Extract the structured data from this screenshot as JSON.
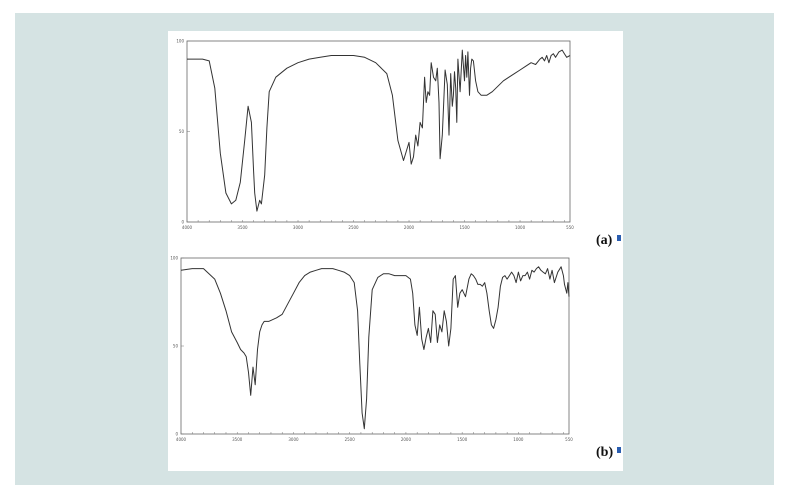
{
  "figure": {
    "label_a": "(a)",
    "label_b": "(b)"
  },
  "colors": {
    "background": "#d5e3e3",
    "panel": "#ffffff",
    "line": "#333333",
    "marker": "#2a5db0"
  },
  "chart_data": [
    {
      "type": "line",
      "label": "(a)",
      "title": "",
      "xlabel": "",
      "ylabel": "",
      "xlim": [
        4000,
        550
      ],
      "ylim": [
        0,
        100
      ],
      "x_ticks": [
        4000,
        3500,
        3000,
        2500,
        2000,
        1500,
        1000,
        550
      ],
      "y_ticks": [
        0,
        50,
        100
      ],
      "grid": false,
      "legend": "none",
      "series": [
        {
          "name": "",
          "x": [
            4000,
            3860,
            3800,
            3750,
            3700,
            3650,
            3600,
            3560,
            3520,
            3480,
            3450,
            3420,
            3400,
            3390,
            3370,
            3345,
            3330,
            3300,
            3280,
            3260,
            3200,
            3100,
            3000,
            2900,
            2800,
            2700,
            2600,
            2500,
            2400,
            2300,
            2200,
            2150,
            2100,
            2050,
            2000,
            1980,
            1960,
            1940,
            1920,
            1900,
            1880,
            1860,
            1845,
            1830,
            1815,
            1800,
            1780,
            1760,
            1745,
            1730,
            1720,
            1700,
            1690,
            1675,
            1655,
            1640,
            1625,
            1610,
            1600,
            1590,
            1580,
            1570,
            1560,
            1540,
            1520,
            1500,
            1490,
            1480,
            1470,
            1455,
            1445,
            1435,
            1420,
            1400,
            1380,
            1350,
            1300,
            1250,
            1200,
            1150,
            1100,
            1050,
            1000,
            950,
            900,
            860,
            820,
            800,
            780,
            760,
            740,
            720,
            700,
            680,
            650,
            620,
            600,
            580,
            550
          ],
          "values": [
            90,
            90,
            89,
            74,
            38,
            16,
            10,
            12,
            22,
            45,
            64,
            55,
            28,
            16,
            6,
            12,
            10,
            26,
            52,
            72,
            80,
            85,
            88,
            90,
            91,
            92,
            92,
            92,
            91,
            88,
            82,
            70,
            45,
            34,
            44,
            32,
            36,
            48,
            42,
            55,
            52,
            80,
            66,
            72,
            70,
            88,
            80,
            78,
            85,
            66,
            35,
            48,
            62,
            84,
            76,
            48,
            82,
            64,
            70,
            83,
            74,
            55,
            90,
            72,
            95,
            78,
            92,
            80,
            94,
            70,
            85,
            90,
            89,
            78,
            72,
            70,
            70,
            72,
            75,
            78,
            80,
            82,
            84,
            86,
            88,
            87,
            90,
            91,
            89,
            92,
            88,
            92,
            93,
            91,
            94,
            95,
            93,
            91,
            92
          ]
        }
      ]
    },
    {
      "type": "line",
      "label": "(b)",
      "title": "",
      "xlabel": "",
      "ylabel": "",
      "xlim": [
        4000,
        550
      ],
      "ylim": [
        0,
        100
      ],
      "x_ticks": [
        4000,
        3500,
        3000,
        2500,
        2000,
        1500,
        1000,
        550
      ],
      "y_ticks": [
        0,
        50,
        100
      ],
      "grid": false,
      "legend": "none",
      "series": [
        {
          "name": "",
          "x": [
            4000,
            3900,
            3800,
            3700,
            3650,
            3600,
            3550,
            3500,
            3470,
            3440,
            3420,
            3400,
            3380,
            3360,
            3340,
            3320,
            3300,
            3280,
            3260,
            3220,
            3150,
            3100,
            3050,
            3000,
            2950,
            2900,
            2850,
            2800,
            2750,
            2700,
            2650,
            2600,
            2550,
            2500,
            2460,
            2430,
            2410,
            2390,
            2370,
            2350,
            2330,
            2300,
            2250,
            2200,
            2150,
            2100,
            2000,
            1960,
            1940,
            1920,
            1900,
            1880,
            1860,
            1840,
            1820,
            1800,
            1780,
            1760,
            1740,
            1720,
            1700,
            1680,
            1660,
            1640,
            1620,
            1600,
            1580,
            1560,
            1540,
            1520,
            1500,
            1470,
            1440,
            1420,
            1400,
            1380,
            1360,
            1340,
            1320,
            1300,
            1280,
            1260,
            1240,
            1220,
            1200,
            1180,
            1160,
            1140,
            1120,
            1100,
            1080,
            1060,
            1040,
            1020,
            1000,
            980,
            960,
            940,
            920,
            900,
            880,
            860,
            840,
            820,
            800,
            780,
            760,
            740,
            720,
            700,
            680,
            650,
            620,
            600,
            590,
            570,
            560,
            550
          ],
          "values": [
            93,
            94,
            94,
            88,
            80,
            70,
            58,
            52,
            48,
            46,
            44,
            35,
            22,
            38,
            28,
            48,
            58,
            62,
            64,
            64,
            66,
            68,
            74,
            80,
            86,
            90,
            92,
            93,
            94,
            94,
            94,
            93,
            92,
            90,
            86,
            70,
            40,
            12,
            3,
            20,
            55,
            82,
            89,
            91,
            91,
            90,
            90,
            88,
            80,
            62,
            56,
            72,
            54,
            48,
            55,
            60,
            52,
            70,
            68,
            52,
            62,
            58,
            70,
            64,
            50,
            60,
            88,
            90,
            72,
            80,
            82,
            78,
            88,
            91,
            90,
            88,
            85,
            85,
            84,
            86,
            80,
            70,
            62,
            60,
            65,
            72,
            84,
            89,
            90,
            88,
            90,
            92,
            90,
            86,
            92,
            87,
            90,
            90,
            92,
            88,
            93,
            92,
            94,
            95,
            93,
            92,
            91,
            94,
            88,
            93,
            86,
            92,
            95,
            90,
            85,
            80,
            86,
            78
          ]
        }
      ]
    }
  ]
}
